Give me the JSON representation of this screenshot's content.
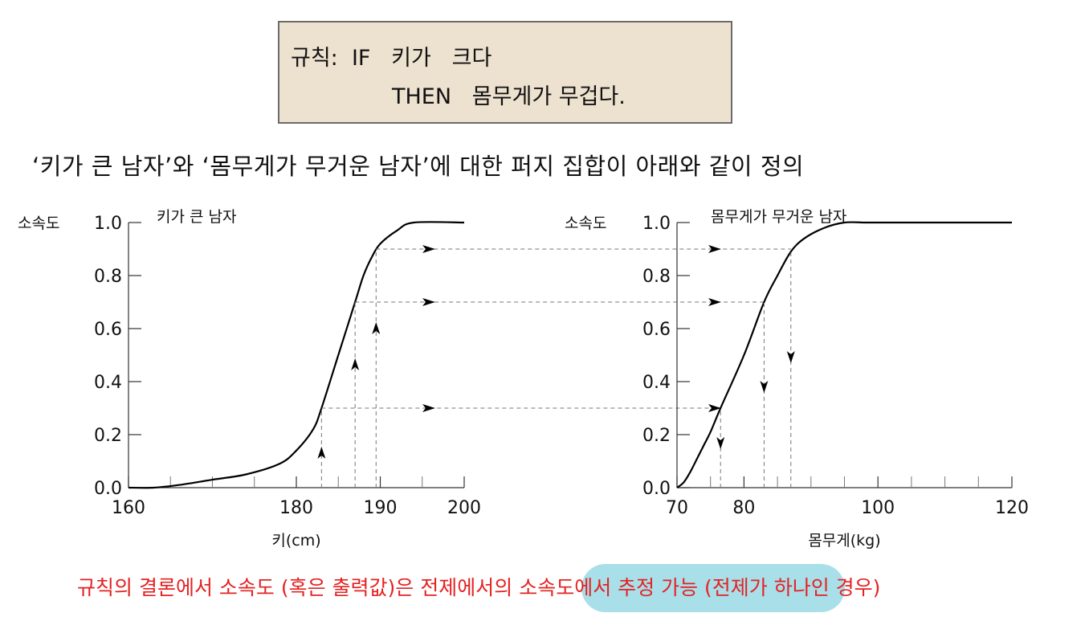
{
  "rule": {
    "line1": "규칙:  IF   키가   크다",
    "line2": "THEN   몸무게가 무겁다."
  },
  "description": "‘키가 큰 남자’와 ‘몸무게가 무거운 남자’에 대한 퍼지 집합이 아래와 같이 정의",
  "conclusion": "규칙의 결론에서 소속도 (혹은 출력값)은 전제에서의 소속도에서 추정 가능 (전제가 하나인 경우)",
  "colors": {
    "rule_box_bg": "#ede1cf",
    "highlight": "#a8dfe9",
    "conclusion_text": "#e52222"
  },
  "chart_data": [
    {
      "type": "line",
      "title": "키가 큰 남자",
      "xlabel": "키(cm)",
      "ylabel": "소속도",
      "xlim": [
        160,
        200
      ],
      "ylim": [
        0,
        1.0
      ],
      "x_ticks": [
        "160",
        "180",
        "190",
        "200"
      ],
      "y_ticks": [
        "0.0",
        "0.2",
        "0.4",
        "0.6",
        "0.8",
        "1.0"
      ],
      "series": [
        {
          "x": [
            160,
            163,
            166,
            170,
            174,
            178,
            180,
            182,
            183,
            185,
            187,
            188,
            189,
            190,
            192,
            194,
            200
          ],
          "y": [
            0,
            0,
            0.01,
            0.03,
            0.05,
            0.09,
            0.14,
            0.22,
            0.3,
            0.5,
            0.7,
            0.8,
            0.87,
            0.92,
            0.97,
            1.0,
            1.0
          ]
        }
      ],
      "guides": [
        {
          "x": 183,
          "y": 0.3
        },
        {
          "x": 187,
          "y": 0.7
        },
        {
          "x": 189.5,
          "y": 0.9
        }
      ],
      "grid": false
    },
    {
      "type": "line",
      "title": "몸무게가 무거운 남자",
      "xlabel": "몸무게(kg)",
      "ylabel": "소속도",
      "xlim": [
        70,
        120
      ],
      "ylim": [
        0,
        1.0
      ],
      "x_ticks": [
        "70",
        "80",
        "100",
        "120"
      ],
      "y_ticks": [
        "0.0",
        "0.2",
        "0.4",
        "0.6",
        "0.8",
        "1.0"
      ],
      "series": [
        {
          "x": [
            70,
            71,
            72,
            73,
            74,
            75,
            76.5,
            80,
            83,
            85,
            87,
            89,
            92,
            95,
            98,
            100,
            120
          ],
          "y": [
            0,
            0.02,
            0.06,
            0.11,
            0.16,
            0.21,
            0.3,
            0.5,
            0.7,
            0.8,
            0.89,
            0.94,
            0.98,
            1.0,
            1.0,
            1.0,
            1.0
          ]
        }
      ],
      "guides": [
        {
          "x": 76.5,
          "y": 0.3
        },
        {
          "x": 83,
          "y": 0.7
        },
        {
          "x": 87,
          "y": 0.9
        }
      ],
      "grid": false
    }
  ]
}
